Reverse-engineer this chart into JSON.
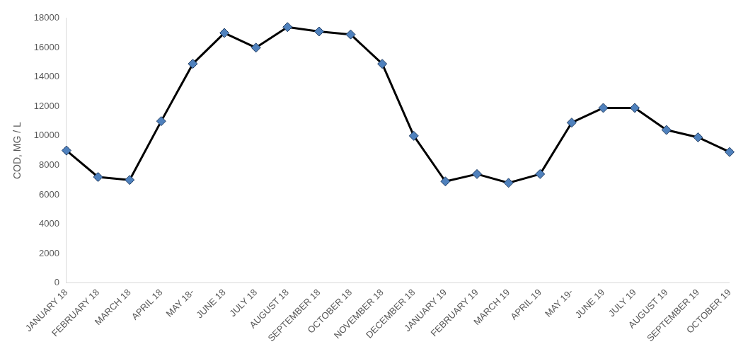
{
  "chart_data": {
    "type": "line",
    "ylabel": "COD, MG / L",
    "categories": [
      "JANUARY 18",
      "FEBRUARY 18",
      "MARCH 18",
      "APRIL 18",
      "MAY 18-",
      "JUNE 18",
      "JULY 18",
      "AUGUST 18",
      "SEPTEMBER 18",
      "OCTOBER 18",
      "NOVEMBER 18",
      "DECEMBER 18",
      "JANUARY 19",
      "FEBRUARY 19",
      "MARCH 19",
      "APRIL 19",
      "MAY 19-",
      "JUNE 19",
      "JULY 19",
      "AUGUST 19",
      "SEPTEMBER 19",
      "OCTOBER 19"
    ],
    "series": [
      {
        "color": "#000000",
        "values": [
          9000,
          7200,
          7000,
          11000,
          14900,
          17000,
          16000,
          17400,
          17100,
          16900,
          14900,
          10000,
          6900,
          7400,
          6800,
          7400,
          10900,
          11900,
          11900,
          10400,
          9900,
          8900
        ]
      }
    ],
    "marker": "diamond",
    "line_style": "solid",
    "ylim": [
      0,
      18000
    ],
    "yticks": [
      0,
      2000,
      4000,
      6000,
      8000,
      10000,
      12000,
      14000,
      16000,
      18000
    ],
    "grid": false,
    "legend": false
  }
}
